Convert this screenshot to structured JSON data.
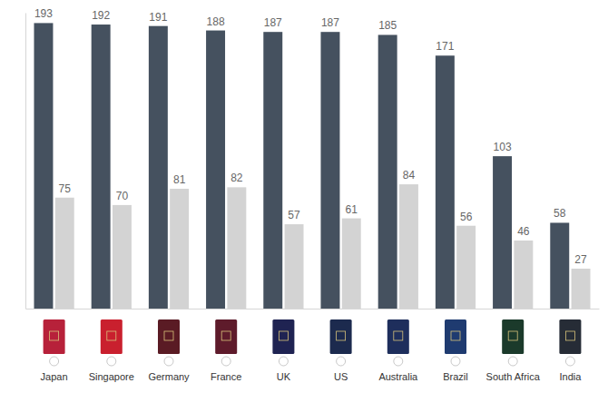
{
  "chart_data": {
    "type": "bar",
    "categories": [
      "Japan",
      "Singapore",
      "Germany",
      "France",
      "UK",
      "US",
      "Australia",
      "Brazil",
      "South Africa",
      "India"
    ],
    "series": [
      {
        "color": "#45515f",
        "values": [
          193,
          192,
          191,
          188,
          187,
          187,
          185,
          171,
          103,
          58
        ]
      },
      {
        "color": "#d3d3d3",
        "values": [
          75,
          70,
          81,
          82,
          57,
          61,
          84,
          56,
          46,
          27
        ]
      }
    ],
    "ylim": [
      0,
      200
    ],
    "yticks": [],
    "tick_labels": "x",
    "data_labels": true
  }
}
